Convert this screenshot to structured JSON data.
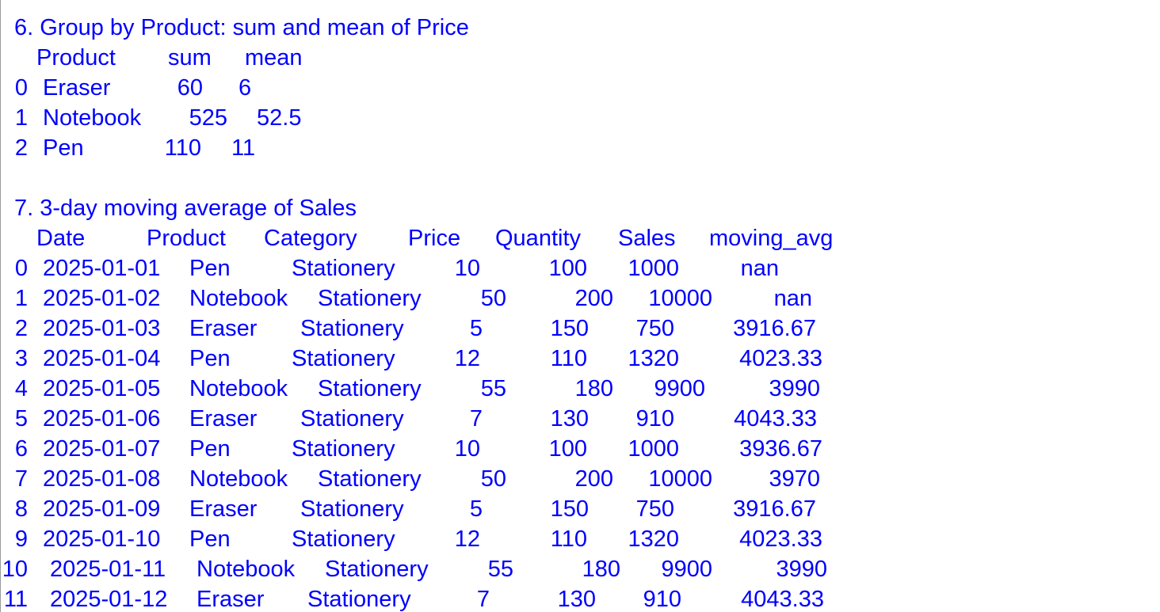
{
  "section6": {
    "title": "6. Group by Product: sum and mean of Price",
    "columns": [
      "Product",
      "sum",
      "mean"
    ],
    "rows": [
      [
        "0",
        "Eraser",
        "60",
        "6"
      ],
      [
        "1",
        "Notebook",
        "525",
        "52.5"
      ],
      [
        "2",
        "Pen",
        "110",
        "11"
      ]
    ]
  },
  "section7": {
    "title": "7. 3-day moving average of Sales",
    "columns": [
      "Date",
      "Product",
      "Category",
      "Price",
      "Quantity",
      "Sales",
      "moving_avg"
    ],
    "rows": [
      [
        "0",
        "2025-01-01",
        "Pen",
        "Stationery",
        "10",
        "100",
        "1000",
        "nan"
      ],
      [
        "1",
        "2025-01-02",
        "Notebook",
        "Stationery",
        "50",
        "200",
        "10000",
        "nan"
      ],
      [
        "2",
        "2025-01-03",
        "Eraser",
        "Stationery",
        "5",
        "150",
        "750",
        "3916.67"
      ],
      [
        "3",
        "2025-01-04",
        "Pen",
        "Stationery",
        "12",
        "110",
        "1320",
        "4023.33"
      ],
      [
        "4",
        "2025-01-05",
        "Notebook",
        "Stationery",
        "55",
        "180",
        "9900",
        "3990"
      ],
      [
        "5",
        "2025-01-06",
        "Eraser",
        "Stationery",
        "7",
        "130",
        "910",
        "4043.33"
      ],
      [
        "6",
        "2025-01-07",
        "Pen",
        "Stationery",
        "10",
        "100",
        "1000",
        "3936.67"
      ],
      [
        "7",
        "2025-01-08",
        "Notebook",
        "Stationery",
        "50",
        "200",
        "10000",
        "3970"
      ],
      [
        "8",
        "2025-01-09",
        "Eraser",
        "Stationery",
        "5",
        "150",
        "750",
        "3916.67"
      ],
      [
        "9",
        "2025-01-10",
        "Pen",
        "Stationery",
        "12",
        "110",
        "1320",
        "4023.33"
      ],
      [
        "10",
        "2025-01-11",
        "Notebook",
        "Stationery",
        "55",
        "180",
        "9900",
        "3990"
      ],
      [
        "11",
        "2025-01-12",
        "Eraser",
        "Stationery",
        "7",
        "130",
        "910",
        "4043.33"
      ]
    ]
  }
}
